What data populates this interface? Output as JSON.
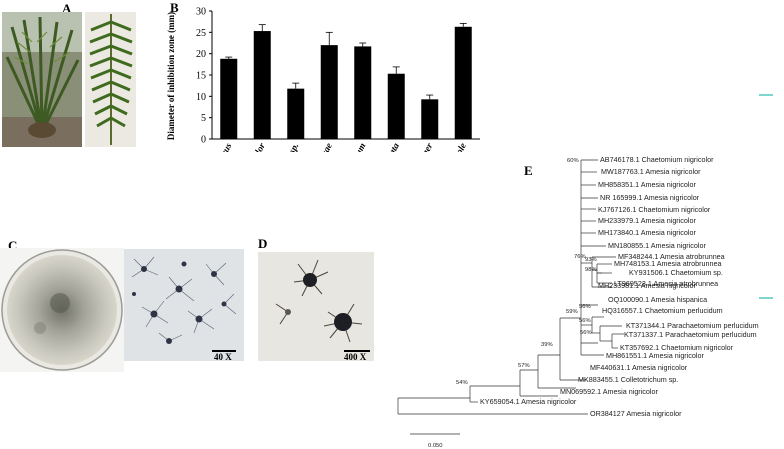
{
  "panels": {
    "a": "A",
    "b": "B",
    "c": "C",
    "d": "D",
    "e": "E"
  },
  "scale_bars": {
    "c_micro": "40 X",
    "d_micro": "400 X"
  },
  "colors": {
    "bar": "#000000",
    "accent_teal": "#7fd6d0"
  },
  "chart_data": {
    "type": "bar",
    "title": "",
    "xlabel": "",
    "ylabel": "Diameter of inhibition zone (mm)",
    "ylim": [
      0,
      30
    ],
    "yticks": [
      "0",
      "5",
      "10",
      "15",
      "20",
      "25",
      "30"
    ],
    "categories": [
      "A. ochraceus",
      "Amesia nigricolor",
      "Cladosporium sp.",
      "A. oryzae",
      "F. oxysporum",
      "Alternaria alternata",
      "A. niger",
      "St. fluconazole"
    ],
    "values": [
      18.8,
      25.3,
      11.8,
      22.0,
      21.7,
      15.3,
      9.3,
      26.3
    ],
    "errors": [
      0.4,
      1.5,
      1.3,
      3.0,
      0.8,
      1.6,
      1.0,
      0.8
    ]
  },
  "tree": {
    "taxa": [
      "AB746178.1 Chaetomium nigricolor",
      "MW187763.1 Amesia nigricolor",
      "MH858351.1 Amesia nigricolor",
      "NR 165999.1 Amesia nigricolor",
      "KJ767126.1 Chaetomium nigricolor",
      "MH233979.1 Amesia nigricolor",
      "MH173840.1 Amesia nigricolor",
      "MN180855.1 Amesia nigricolor",
      "MF348244.1 Amesia atrobrunnea",
      "MH748153.1 Amesia atrobrunnea",
      "KY931506.1 Chaetomium sp.",
      "LT969523.1 Amesia atrobrunnea",
      "MH233981.1 Amesia nigricolor",
      "OQ100090.1 Amesia hispanica",
      "HQ316557.1 Chaetomium perlucidum",
      "KT371344.1 Parachaetomium perlucidum",
      "KT371337.1 Parachaetomium perlucidum",
      "KT357692.1 Chaetomium nigricolor",
      "MH861551.1 Amesia nigricolor",
      "MF440631.1 Amesia nigricolor",
      "MK883455.1 Colletotrichum sp.",
      "MN069592.1 Amesia nigricolor",
      "KY659054.1 Amesia nigricolor",
      "OR384127 Amesia nigricolor"
    ],
    "bootstrap": [
      "60%",
      "76%",
      "93%",
      "98%",
      "56%",
      "56%",
      "56%",
      "59%",
      "39%",
      "57%",
      "54%"
    ],
    "scale": "0.050"
  }
}
